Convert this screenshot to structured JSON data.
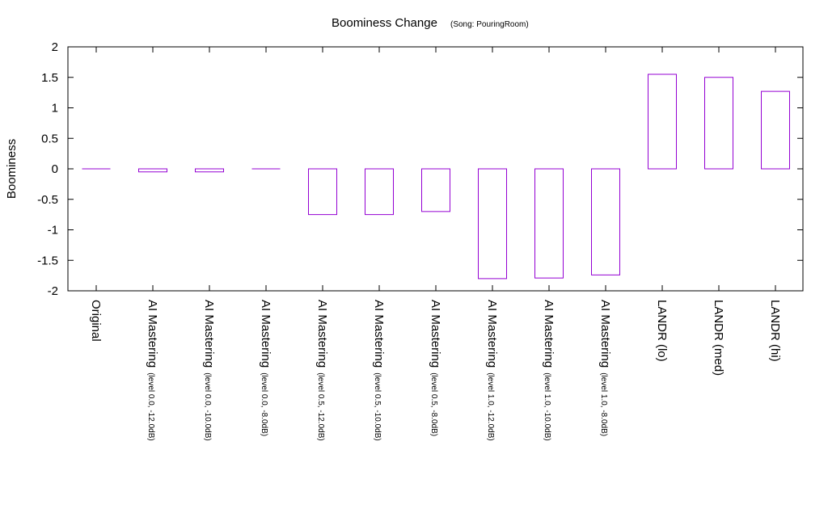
{
  "chart_data": {
    "type": "bar",
    "title": "Boominess Change",
    "subtitle": "(Song: PouringRoom)",
    "xlabel": "",
    "ylabel": "Boominess",
    "ylim": [
      -2,
      2
    ],
    "yticks": [
      "2",
      "1.5",
      "1",
      "0.5",
      "0",
      "-0.5",
      "-1",
      "-1.5",
      "-2"
    ],
    "grid": false,
    "bar_color": "#9400d3",
    "categories": [
      {
        "main": "Original",
        "sub": ""
      },
      {
        "main": "AI Mastering",
        "sub": "(level 0.0, -12.0dB)"
      },
      {
        "main": "AI Mastering",
        "sub": "(level 0.0, -10.0dB)"
      },
      {
        "main": "AI Mastering",
        "sub": "(level 0.0, -8.0dB)"
      },
      {
        "main": "AI Mastering",
        "sub": "(level 0.5, -12.0dB)"
      },
      {
        "main": "AI Mastering",
        "sub": "(level 0.5, -10.0dB)"
      },
      {
        "main": "AI Mastering",
        "sub": "(level 0.5, -8.0dB)"
      },
      {
        "main": "AI Mastering",
        "sub": "(level 1.0, -12.0dB)"
      },
      {
        "main": "AI Mastering",
        "sub": "(level 1.0, -10.0dB)"
      },
      {
        "main": "AI Mastering",
        "sub": "(level 1.0, -8.0dB)"
      },
      {
        "main": "LANDR (lo)",
        "sub": ""
      },
      {
        "main": "LANDR (med)",
        "sub": ""
      },
      {
        "main": "LANDR (hi)",
        "sub": ""
      }
    ],
    "values": [
      0.0,
      -0.05,
      -0.05,
      0.0,
      -0.75,
      -0.75,
      -0.7,
      -1.8,
      -1.79,
      -1.74,
      1.55,
      1.5,
      1.27
    ]
  }
}
